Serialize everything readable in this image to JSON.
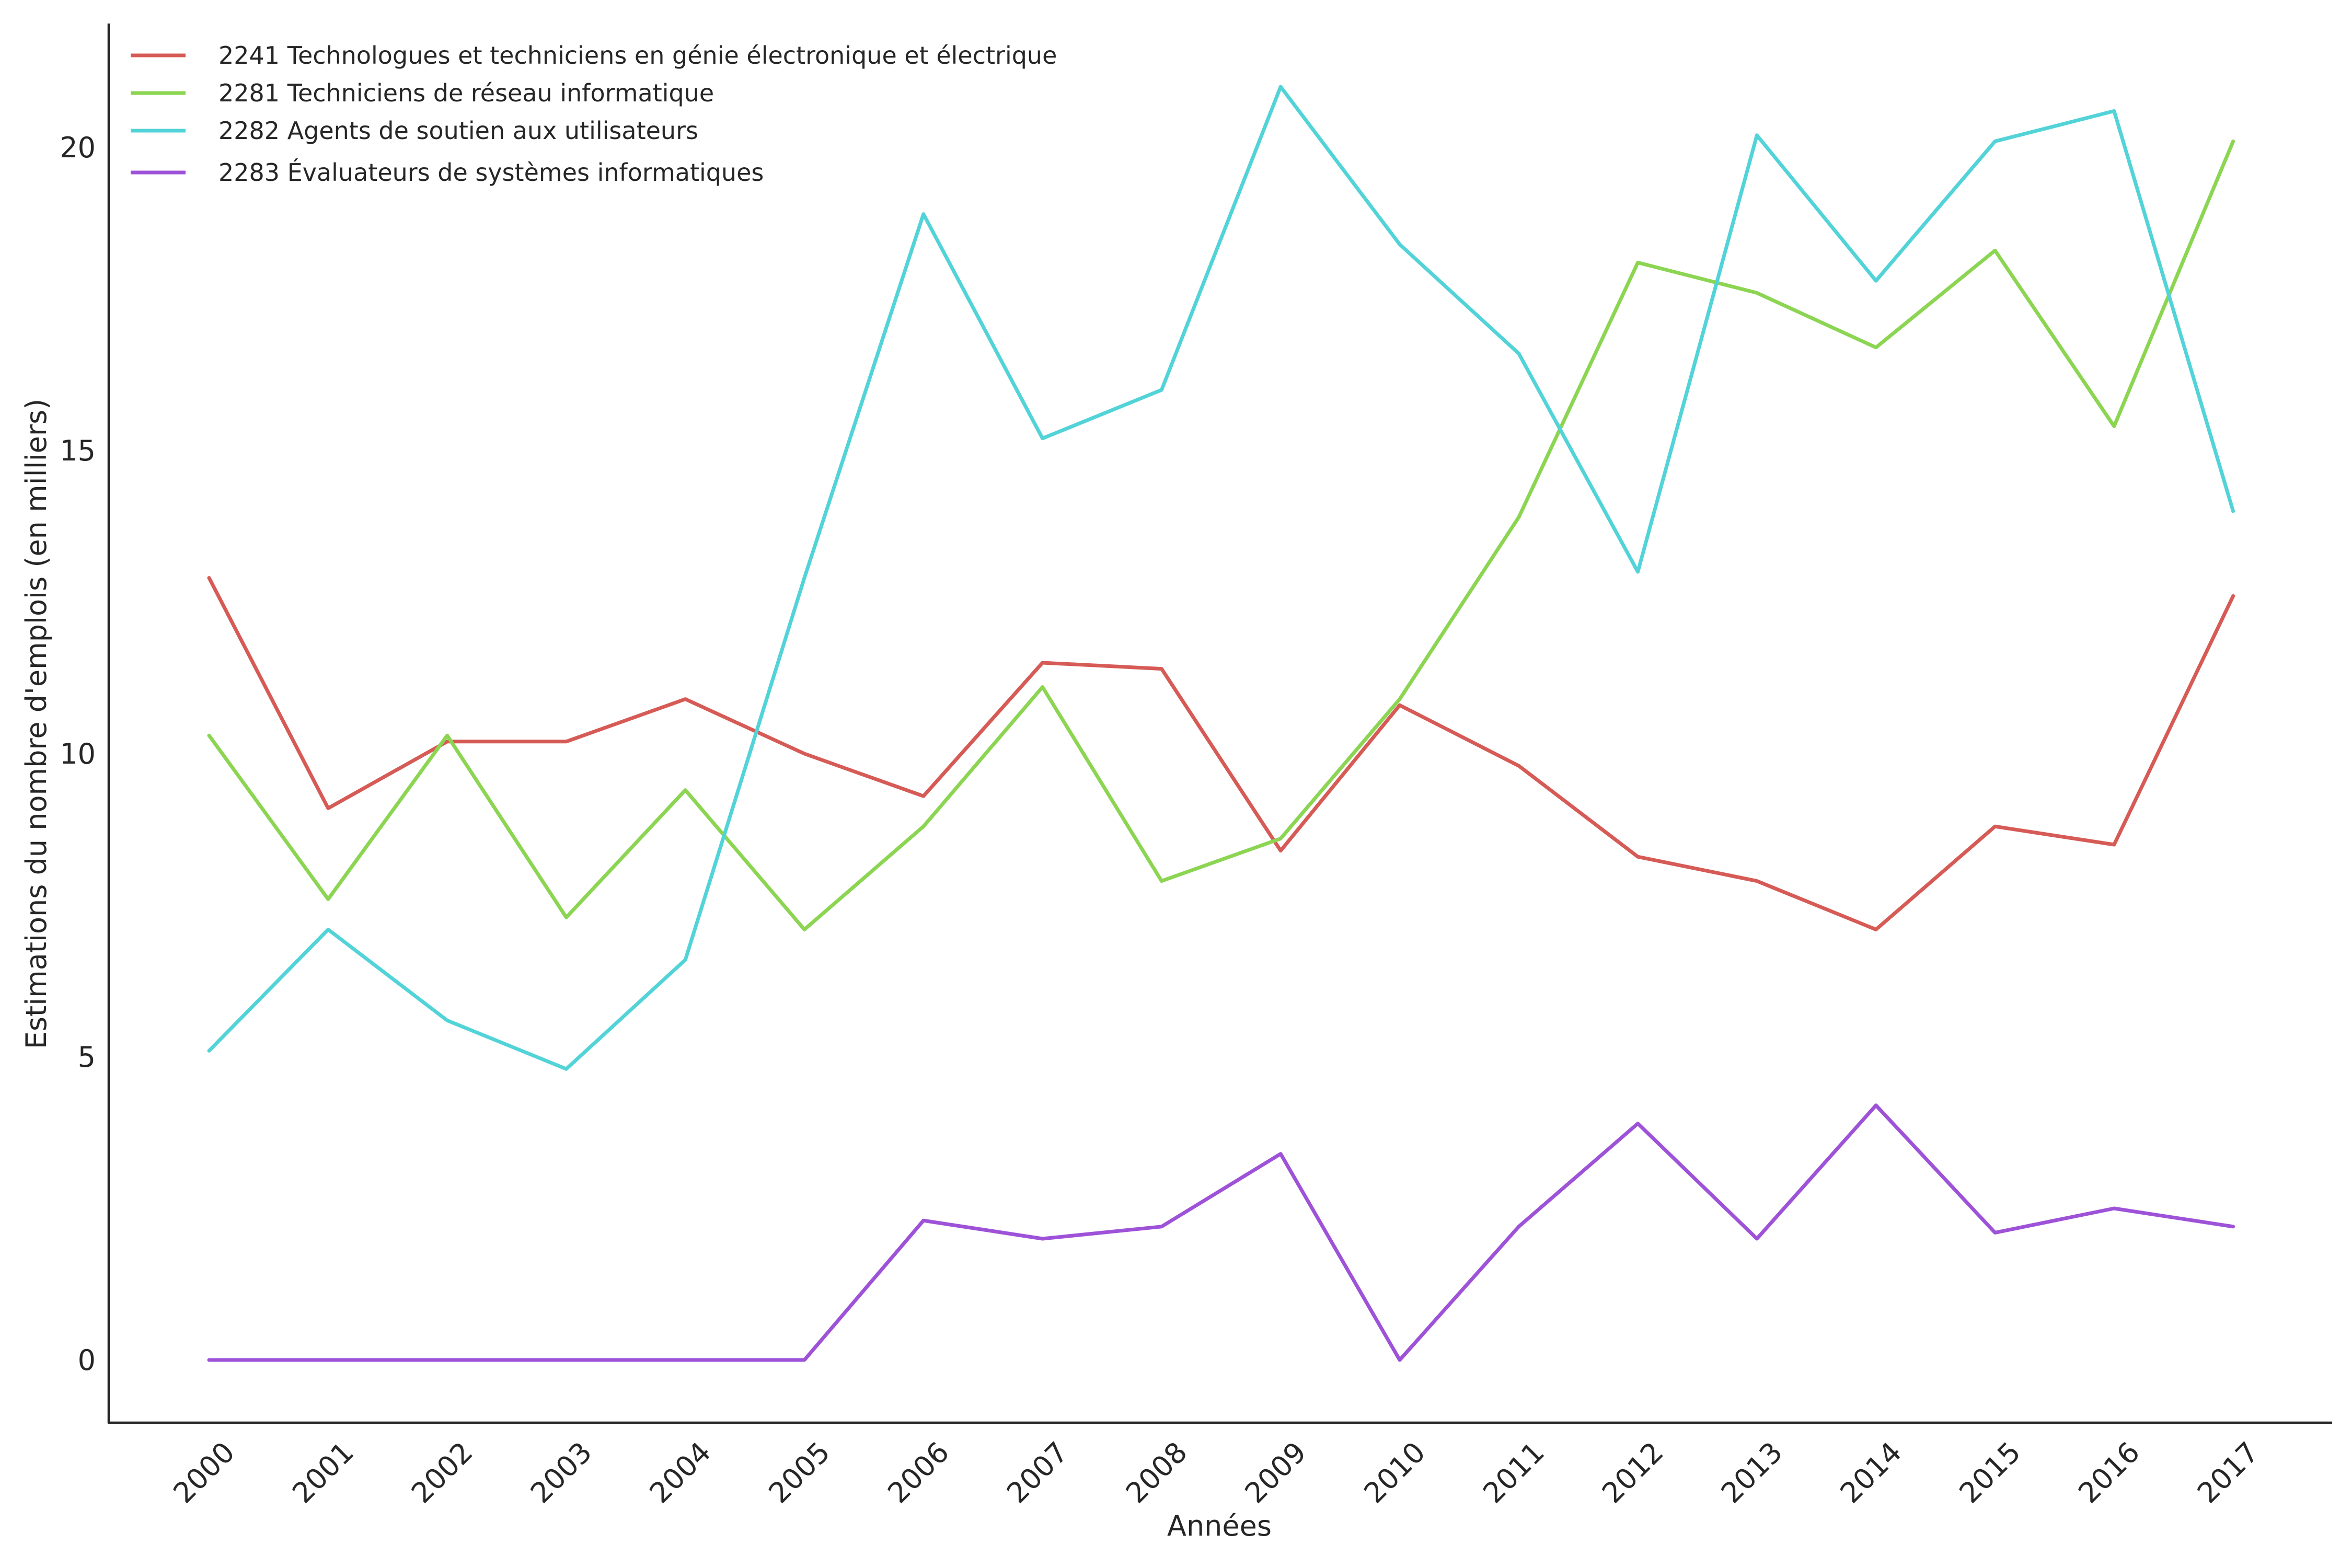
{
  "chart_data": {
    "type": "line",
    "title": "",
    "xlabel": "Années",
    "ylabel": "Estimations du nombre d'emplois (en milliers)",
    "x": [
      "2000",
      "2001",
      "2002",
      "2003",
      "2004",
      "2005",
      "2006",
      "2007",
      "2008",
      "2009",
      "2010",
      "2011",
      "2012",
      "2013",
      "2014",
      "2015",
      "2016",
      "2017"
    ],
    "yticks": [
      0,
      5,
      10,
      15,
      20
    ],
    "ylim": [
      -1.0,
      22.1
    ],
    "grid": false,
    "legend_position": "top-left",
    "series": [
      {
        "name": "2241 Technologues et techniciens en génie électronique et électrique",
        "color": "#d65a55",
        "values": [
          12.9,
          9.1,
          10.2,
          10.2,
          10.9,
          10.0,
          9.3,
          11.5,
          11.4,
          8.4,
          10.8,
          9.8,
          8.3,
          7.9,
          7.1,
          8.8,
          8.5,
          12.6
        ]
      },
      {
        "name": "2281 Techniciens de réseau informatique",
        "color": "#8cd552",
        "values": [
          10.3,
          7.6,
          10.3,
          7.3,
          9.4,
          7.1,
          8.8,
          11.1,
          7.9,
          8.6,
          10.9,
          13.9,
          18.1,
          17.6,
          16.7,
          18.3,
          15.4,
          20.1
        ]
      },
      {
        "name": "2282 Agents de soutien aux utilisateurs",
        "color": "#52d3d8",
        "values": [
          5.1,
          7.1,
          5.6,
          4.8,
          6.6,
          12.9,
          18.9,
          15.2,
          16.0,
          21.0,
          18.4,
          16.6,
          13.0,
          20.2,
          17.8,
          20.1,
          20.6,
          14.0
        ]
      },
      {
        "name": "2283 Évaluateurs de systèmes informatiques",
        "color": "#9d52d8",
        "values": [
          0.0,
          0.0,
          0.0,
          0.0,
          0.0,
          0.0,
          2.3,
          2.0,
          2.2,
          3.4,
          0.0,
          2.2,
          3.9,
          2.0,
          4.2,
          2.1,
          2.5,
          2.2
        ]
      }
    ]
  }
}
